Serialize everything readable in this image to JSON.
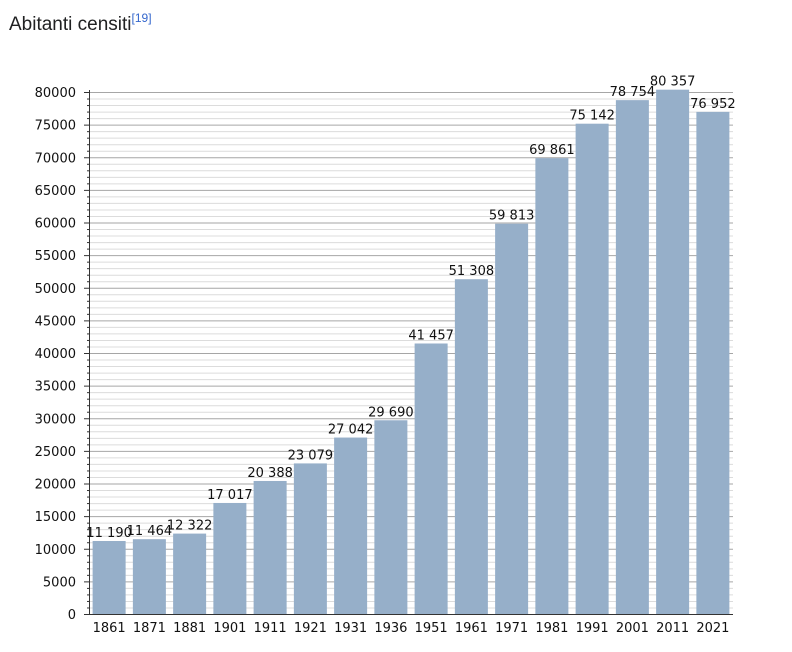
{
  "header": {
    "title": "Abitanti censiti",
    "reference": "[19]"
  },
  "chart_data": {
    "type": "bar",
    "title": "",
    "xlabel": "",
    "ylabel": "",
    "categories": [
      "1861",
      "1871",
      "1881",
      "1901",
      "1911",
      "1921",
      "1931",
      "1936",
      "1951",
      "1961",
      "1971",
      "1981",
      "1991",
      "2001",
      "2011",
      "2021"
    ],
    "values": [
      11190,
      11464,
      12322,
      17017,
      20388,
      23079,
      27042,
      29690,
      41457,
      51308,
      59813,
      69861,
      75142,
      78754,
      80357,
      76952
    ],
    "value_labels": [
      "11 190",
      "11 464",
      "12 322",
      "17 017",
      "20 388",
      "23 079",
      "27 042",
      "29 690",
      "41 457",
      "51 308",
      "59 813",
      "69 861",
      "75 142",
      "78 754",
      "80 357",
      "76 952"
    ],
    "ylim": [
      0,
      80000
    ],
    "yticks": [
      0,
      5000,
      10000,
      15000,
      20000,
      25000,
      30000,
      35000,
      40000,
      45000,
      50000,
      55000,
      60000,
      65000,
      70000,
      75000,
      80000
    ],
    "minor_grid_step": 1000,
    "grid": true,
    "bar_color": "#96afc9",
    "major_grid_color": "#a6a6a6",
    "minor_grid_color": "#dcdcdc"
  }
}
